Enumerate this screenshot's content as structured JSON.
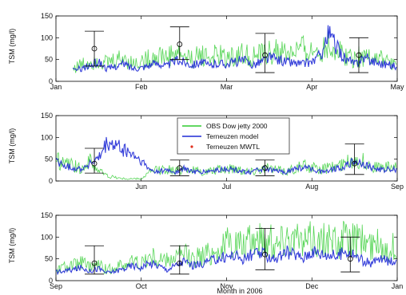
{
  "colors": {
    "obs": "#2ecc2e",
    "model": "#1f2ad6",
    "mwtl": "#e0301e",
    "axis": "#000000"
  },
  "legend": {
    "items": [
      {
        "label": "OBS Dow jetty 2000",
        "color": "#2ecc2e",
        "style": "line"
      },
      {
        "label": "Terneuzen model",
        "color": "#1f2ad6",
        "style": "line"
      },
      {
        "label": "Terneuzen MWTL",
        "color": "#e0301e",
        "style": "marker"
      }
    ],
    "placement": "middle panel, upper center"
  },
  "chart_data": [
    {
      "type": "line",
      "ylabel": "TSM (mg/l)",
      "xlabel": "",
      "ylim": [
        0,
        150
      ],
      "yticks": [
        "0",
        "50",
        "100",
        "150"
      ],
      "xticks": [
        "Jan",
        "Feb",
        "Mar",
        "Apr",
        "May"
      ],
      "x_range_months": [
        0,
        4
      ],
      "series": [
        {
          "name": "OBS Dow jetty 2000",
          "x": [
            0.2,
            0.3,
            0.4,
            0.5,
            0.6,
            0.7,
            0.8,
            0.9,
            1.0,
            1.1,
            1.2,
            1.3,
            1.4,
            1.5,
            1.6,
            1.7,
            1.8,
            1.9,
            2.0,
            2.1,
            2.2,
            2.3,
            2.4,
            2.5,
            2.6,
            2.7,
            2.8,
            2.9,
            3.0,
            3.1,
            3.2,
            3.3,
            3.4,
            3.5,
            3.6,
            3.7,
            3.8,
            3.9,
            4.0
          ],
          "values": [
            30,
            38,
            45,
            50,
            42,
            48,
            55,
            40,
            45,
            52,
            60,
            55,
            65,
            58,
            50,
            62,
            55,
            60,
            52,
            58,
            62,
            55,
            60,
            65,
            70,
            62,
            68,
            72,
            65,
            75,
            85,
            70,
            60,
            55,
            58,
            60,
            50,
            45,
            40
          ]
        },
        {
          "name": "Terneuzen model",
          "x": [
            0.2,
            0.3,
            0.4,
            0.5,
            0.6,
            0.7,
            0.8,
            0.9,
            1.0,
            1.1,
            1.2,
            1.3,
            1.4,
            1.5,
            1.6,
            1.7,
            1.8,
            1.9,
            2.0,
            2.1,
            2.2,
            2.3,
            2.4,
            2.5,
            2.6,
            2.7,
            2.8,
            2.9,
            3.0,
            3.1,
            3.2,
            3.3,
            3.4,
            3.5,
            3.6,
            3.7,
            3.8,
            3.9,
            4.0
          ],
          "values": [
            25,
            30,
            35,
            45,
            28,
            35,
            40,
            30,
            32,
            38,
            42,
            35,
            48,
            45,
            38,
            45,
            35,
            42,
            40,
            45,
            48,
            38,
            45,
            55,
            50,
            45,
            42,
            40,
            45,
            60,
            110,
            75,
            50,
            40,
            55,
            48,
            42,
            38,
            35
          ]
        },
        {
          "name": "Terneuzen MWTL",
          "points": [
            {
              "x": 0.45,
              "y": 75,
              "low": 35,
              "high": 115
            },
            {
              "x": 1.45,
              "y": 85,
              "low": 50,
              "high": 125
            },
            {
              "x": 2.45,
              "y": 60,
              "low": 20,
              "high": 110
            },
            {
              "x": 3.55,
              "y": 60,
              "low": 20,
              "high": 100
            }
          ]
        }
      ]
    },
    {
      "type": "line",
      "ylabel": "TSM (mg/l)",
      "xlabel": "",
      "ylim": [
        0,
        150
      ],
      "yticks": [
        "0",
        "50",
        "100",
        "150"
      ],
      "xticks": [
        "Jun",
        "Jul",
        "Aug",
        "Sep"
      ],
      "x_range_months": [
        4,
        8
      ],
      "series": [
        {
          "name": "OBS Dow jetty 2000",
          "x": [
            4.0,
            4.1,
            4.2,
            4.3,
            4.4,
            4.5,
            4.6,
            4.7,
            4.8,
            4.9,
            5.0,
            5.1,
            5.2,
            5.3,
            5.4,
            5.5,
            5.6,
            5.7,
            5.8,
            5.9,
            6.0,
            6.1,
            6.2,
            6.3,
            6.4,
            6.5,
            6.6,
            6.7,
            6.8,
            6.9,
            7.0,
            7.1,
            7.2,
            7.3,
            7.4,
            7.5,
            7.6,
            7.7,
            7.8,
            7.9,
            8.0
          ],
          "values": [
            50,
            40,
            35,
            30,
            45,
            25,
            12,
            8,
            5,
            5,
            5,
            20,
            25,
            28,
            22,
            30,
            25,
            20,
            22,
            25,
            28,
            30,
            25,
            22,
            30,
            28,
            25,
            22,
            30,
            35,
            30,
            25,
            30,
            35,
            40,
            50,
            45,
            35,
            30,
            32,
            30
          ]
        },
        {
          "name": "Terneuzen model",
          "x": [
            4.0,
            4.1,
            4.2,
            4.3,
            4.4,
            4.5,
            4.6,
            4.7,
            4.8,
            4.9,
            5.0,
            5.1,
            5.2,
            5.3,
            5.4,
            5.5,
            5.6,
            5.7,
            5.8,
            5.9,
            6.0,
            6.1,
            6.2,
            6.3,
            6.4,
            6.5,
            6.6,
            6.7,
            6.8,
            6.9,
            7.0,
            7.1,
            7.2,
            7.3,
            7.4,
            7.5,
            7.6,
            7.7,
            7.8,
            7.9,
            8.0
          ],
          "values": [
            45,
            35,
            30,
            28,
            40,
            50,
            85,
            80,
            70,
            60,
            45,
            25,
            22,
            25,
            20,
            28,
            22,
            20,
            22,
            25,
            28,
            25,
            22,
            20,
            28,
            25,
            22,
            20,
            28,
            30,
            28,
            22,
            25,
            30,
            35,
            45,
            40,
            30,
            25,
            28,
            25
          ]
        },
        {
          "name": "Terneuzen MWTL",
          "points": [
            {
              "x": 4.45,
              "y": 40,
              "low": 18,
              "high": 75
            },
            {
              "x": 5.45,
              "y": 30,
              "low": 12,
              "high": 48
            },
            {
              "x": 6.45,
              "y": 30,
              "low": 12,
              "high": 48
            },
            {
              "x": 7.5,
              "y": 40,
              "low": 15,
              "high": 85
            }
          ]
        }
      ]
    },
    {
      "type": "line",
      "ylabel": "TSM (mg/l)",
      "xlabel": "Month in 2006",
      "ylim": [
        0,
        150
      ],
      "yticks": [
        "0",
        "50",
        "100",
        "150"
      ],
      "xticks": [
        "Sep",
        "Oct",
        "Nov",
        "Dec",
        "Jan"
      ],
      "x_range_months": [
        8,
        12
      ],
      "series": [
        {
          "name": "OBS Dow jetty 2000",
          "x": [
            8.0,
            8.1,
            8.2,
            8.3,
            8.4,
            8.5,
            8.6,
            8.7,
            8.8,
            8.9,
            9.0,
            9.1,
            9.2,
            9.3,
            9.4,
            9.5,
            9.6,
            9.7,
            9.8,
            9.9,
            10.0,
            10.1,
            10.2,
            10.3,
            10.4,
            10.5,
            10.6,
            10.7,
            10.8,
            10.9,
            11.0,
            11.1,
            11.2,
            11.3,
            11.4,
            11.5,
            11.6,
            11.7,
            11.8,
            11.9,
            12.0
          ],
          "values": [
            25,
            30,
            35,
            40,
            30,
            35,
            25,
            30,
            38,
            45,
            40,
            55,
            50,
            45,
            55,
            60,
            50,
            55,
            65,
            70,
            85,
            90,
            80,
            95,
            100,
            90,
            85,
            110,
            95,
            85,
            100,
            90,
            95,
            85,
            100,
            90,
            95,
            80,
            85,
            75,
            80
          ]
        },
        {
          "name": "Terneuzen model",
          "x": [
            8.0,
            8.1,
            8.2,
            8.3,
            8.4,
            8.5,
            8.6,
            8.7,
            8.8,
            8.9,
            9.0,
            9.1,
            9.2,
            9.3,
            9.4,
            9.5,
            9.6,
            9.7,
            9.8,
            9.9,
            10.0,
            10.1,
            10.2,
            10.3,
            10.4,
            10.5,
            10.6,
            10.7,
            10.8,
            10.9,
            11.0,
            11.1,
            11.2,
            11.3,
            11.4,
            11.5,
            11.6,
            11.7,
            11.8,
            11.9,
            12.0
          ],
          "values": [
            20,
            22,
            25,
            30,
            22,
            28,
            18,
            22,
            28,
            35,
            30,
            40,
            35,
            25,
            35,
            45,
            35,
            38,
            45,
            50,
            55,
            58,
            50,
            60,
            62,
            55,
            50,
            65,
            60,
            52,
            70,
            62,
            60,
            55,
            70,
            58,
            45,
            40,
            50,
            45,
            48
          ]
        },
        {
          "name": "Terneuzen MWTL",
          "points": [
            {
              "x": 8.45,
              "y": 40,
              "low": 15,
              "high": 80
            },
            {
              "x": 9.45,
              "y": 40,
              "low": 15,
              "high": 80
            },
            {
              "x": 10.45,
              "y": 60,
              "low": 25,
              "high": 120
            },
            {
              "x": 11.45,
              "y": 50,
              "low": 20,
              "high": 100
            }
          ]
        }
      ]
    }
  ]
}
